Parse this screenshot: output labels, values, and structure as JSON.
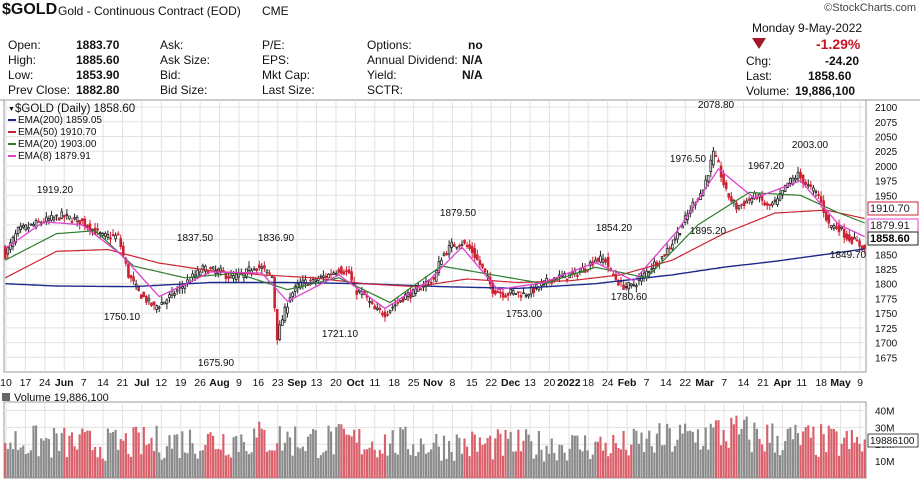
{
  "header": {
    "symbol": "$GOLD",
    "name": "Gold - Continuous Contract (EOD)",
    "exchange": "CME",
    "date_line": "Monday  9-May-2022",
    "change_pct": "-1.29%",
    "quote_rows": [
      {
        "l1": "Open:",
        "v1": "1883.70",
        "l2": "Ask:",
        "l3": "P/E:",
        "l4": "Options:",
        "v4": "no",
        "l5": "Chg:",
        "v5": "-24.20"
      },
      {
        "l1": "High:",
        "v1": "1885.60",
        "l2": "Ask Size:",
        "l3": "EPS:",
        "l4": "Annual Dividend:",
        "v4": "N/A",
        "l5": "Last:",
        "v5": "1858.60"
      },
      {
        "l1": "Low:",
        "v1": "1853.90",
        "l2": "Bid:",
        "l3": "Mkt Cap:",
        "l4": "Yield:",
        "v4": "N/A",
        "l5": "Volume:",
        "v5": "19,886,100"
      },
      {
        "l1": "Prev Close:",
        "v1": "1882.80",
        "l2": "Bid Size:",
        "l3": "Last Size:",
        "l4": "SCTR:",
        "v4": "",
        "l5": "",
        "v5": ""
      }
    ]
  },
  "logo": "©StockCharts.com",
  "colors": {
    "up": "#222222",
    "down": "#cc2233",
    "ema200": "#1c2a8a",
    "ema50": "#cc2233",
    "ema20": "#2f7d2f",
    "ema8": "#e040d0",
    "grid": "#e2e2e2",
    "vol_up": "#8a8a8a",
    "vol_down": "#d9606a"
  },
  "chart_data": {
    "type": "candlestick",
    "title": "$GOLD (Daily) 1858.60",
    "legend": [
      {
        "name": "EMA(200)",
        "value": "1859.05",
        "color_key": "ema200"
      },
      {
        "name": "EMA(50)",
        "value": "1910.70",
        "color_key": "ema50"
      },
      {
        "name": "EMA(20)",
        "value": "1903.00",
        "color_key": "ema20"
      },
      {
        "name": "EMA(8)",
        "value": "1879.91",
        "color_key": "ema8"
      }
    ],
    "ylim": [
      1650,
      2112
    ],
    "y_ticks": [
      1675,
      1700,
      1725,
      1750,
      1775,
      1800,
      1825,
      1850,
      1875,
      1900,
      1925,
      1950,
      1975,
      2000,
      2025,
      2050,
      2075,
      2100
    ],
    "x_tick_labels": [
      "10",
      "17",
      "24",
      "Jun",
      "7",
      "14",
      "21",
      "Jul",
      "12",
      "19",
      "26",
      "Aug",
      "9",
      "16",
      "23",
      "Sep",
      "13",
      "20",
      "Oct",
      "11",
      "18",
      "25",
      "Nov",
      "8",
      "15",
      "22",
      "Dec",
      "13",
      "20",
      "2022",
      "18",
      "24",
      "Feb",
      "7",
      "14",
      "22",
      "Mar",
      "7",
      "14",
      "21",
      "Apr",
      "11",
      "18",
      "May",
      "9"
    ],
    "annotations": [
      "1919.20",
      "1837.50",
      "1836.90",
      "1879.50",
      "1854.20",
      "1976.50",
      "2078.80",
      "1967.20",
      "2003.00",
      "1750.10",
      "1675.90",
      "1721.10",
      "1753.00",
      "1780.60",
      "1895.20",
      "1849.70"
    ],
    "right_labels": [
      {
        "value": "1910.70",
        "level": 1910.7,
        "color_key": "ema50"
      },
      {
        "value": "1879.91",
        "level": 1879.91,
        "color_key": "ema8"
      },
      {
        "value": "1858.60",
        "level": 1858.6,
        "color_key": "up"
      }
    ],
    "price_path": [
      [
        0,
        1850
      ],
      [
        5,
        1890
      ],
      [
        14,
        1905
      ],
      [
        22,
        1915
      ],
      [
        30,
        1905
      ],
      [
        38,
        1880
      ],
      [
        44,
        1880
      ],
      [
        48,
        1815
      ],
      [
        52,
        1785
      ],
      [
        58,
        1760
      ],
      [
        62,
        1770
      ],
      [
        70,
        1800
      ],
      [
        77,
        1825
      ],
      [
        84,
        1820
      ],
      [
        88,
        1810
      ],
      [
        93,
        1815
      ],
      [
        97,
        1830
      ],
      [
        100,
        1826
      ],
      [
        104,
        1812
      ],
      [
        106,
        1710
      ],
      [
        108,
        1740
      ],
      [
        111,
        1780
      ],
      [
        115,
        1800
      ],
      [
        120,
        1805
      ],
      [
        126,
        1815
      ],
      [
        130,
        1825
      ],
      [
        134,
        1818
      ],
      [
        136,
        1790
      ],
      [
        140,
        1780
      ],
      [
        144,
        1755
      ],
      [
        148,
        1750
      ],
      [
        152,
        1765
      ],
      [
        156,
        1780
      ],
      [
        160,
        1785
      ],
      [
        163,
        1800
      ],
      [
        167,
        1808
      ],
      [
        170,
        1845
      ],
      [
        174,
        1865
      ],
      [
        178,
        1870
      ],
      [
        182,
        1855
      ],
      [
        186,
        1825
      ],
      [
        190,
        1790
      ],
      [
        195,
        1782
      ],
      [
        198,
        1786
      ],
      [
        202,
        1782
      ],
      [
        206,
        1790
      ],
      [
        210,
        1800
      ],
      [
        214,
        1810
      ],
      [
        218,
        1812
      ],
      [
        222,
        1816
      ],
      [
        226,
        1826
      ],
      [
        230,
        1842
      ],
      [
        234,
        1840
      ],
      [
        236,
        1820
      ],
      [
        240,
        1797
      ],
      [
        244,
        1795
      ],
      [
        248,
        1810
      ],
      [
        252,
        1830
      ],
      [
        256,
        1845
      ],
      [
        260,
        1870
      ],
      [
        264,
        1900
      ],
      [
        268,
        1935
      ],
      [
        272,
        1960
      ],
      [
        276,
        2020
      ],
      [
        278,
        2000
      ],
      [
        281,
        1955
      ],
      [
        285,
        1930
      ],
      [
        289,
        1940
      ],
      [
        293,
        1950
      ],
      [
        297,
        1930
      ],
      [
        301,
        1940
      ],
      [
        305,
        1970
      ],
      [
        309,
        1985
      ],
      [
        313,
        1965
      ],
      [
        317,
        1950
      ],
      [
        321,
        1900
      ],
      [
        325,
        1895
      ],
      [
        328,
        1880
      ],
      [
        332,
        1870
      ],
      [
        335,
        1858.6
      ]
    ],
    "ema_paths": {
      "ema200": [
        [
          0,
          1800
        ],
        [
          20,
          1796
        ],
        [
          50,
          1795
        ],
        [
          80,
          1802
        ],
        [
          110,
          1802
        ],
        [
          140,
          1800
        ],
        [
          170,
          1795
        ],
        [
          200,
          1792
        ],
        [
          230,
          1800
        ],
        [
          260,
          1815
        ],
        [
          280,
          1828
        ],
        [
          300,
          1838
        ],
        [
          320,
          1850
        ],
        [
          335,
          1859.05
        ]
      ],
      "ema50": [
        [
          0,
          1810
        ],
        [
          20,
          1855
        ],
        [
          40,
          1858
        ],
        [
          60,
          1835
        ],
        [
          80,
          1822
        ],
        [
          100,
          1815
        ],
        [
          120,
          1810
        ],
        [
          140,
          1800
        ],
        [
          160,
          1795
        ],
        [
          180,
          1808
        ],
        [
          200,
          1802
        ],
        [
          220,
          1805
        ],
        [
          240,
          1815
        ],
        [
          260,
          1840
        ],
        [
          280,
          1885
        ],
        [
          300,
          1920
        ],
        [
          320,
          1925
        ],
        [
          335,
          1910.7
        ]
      ],
      "ema20": [
        [
          0,
          1840
        ],
        [
          20,
          1885
        ],
        [
          35,
          1890
        ],
        [
          50,
          1830
        ],
        [
          70,
          1810
        ],
        [
          90,
          1818
        ],
        [
          110,
          1790
        ],
        [
          130,
          1810
        ],
        [
          150,
          1768
        ],
        [
          170,
          1830
        ],
        [
          190,
          1815
        ],
        [
          210,
          1800
        ],
        [
          230,
          1828
        ],
        [
          250,
          1810
        ],
        [
          270,
          1900
        ],
        [
          290,
          1955
        ],
        [
          310,
          1950
        ],
        [
          325,
          1920
        ],
        [
          335,
          1903
        ]
      ],
      "ema8": [
        [
          0,
          1860
        ],
        [
          15,
          1905
        ],
        [
          30,
          1900
        ],
        [
          45,
          1850
        ],
        [
          60,
          1778
        ],
        [
          80,
          1820
        ],
        [
          100,
          1818
        ],
        [
          110,
          1770
        ],
        [
          130,
          1815
        ],
        [
          148,
          1758
        ],
        [
          165,
          1805
        ],
        [
          178,
          1862
        ],
        [
          192,
          1790
        ],
        [
          210,
          1802
        ],
        [
          230,
          1836
        ],
        [
          245,
          1805
        ],
        [
          262,
          1890
        ],
        [
          278,
          1995
        ],
        [
          292,
          1945
        ],
        [
          310,
          1975
        ],
        [
          325,
          1900
        ],
        [
          335,
          1879.91
        ]
      ]
    },
    "volume": {
      "label": "Volume 19,886,100",
      "y_ticks": [
        "40M",
        "30M",
        "20M",
        "10M"
      ],
      "tick_values": [
        40,
        30,
        20,
        10
      ],
      "last_label": "19886100",
      "ylim": [
        0,
        45
      ],
      "unit": "M",
      "profile": [
        [
          0,
          24
        ],
        [
          40,
          22
        ],
        [
          100,
          26
        ],
        [
          170,
          22
        ],
        [
          240,
          21
        ],
        [
          280,
          30
        ],
        [
          300,
          26
        ],
        [
          335,
          22
        ]
      ]
    }
  }
}
